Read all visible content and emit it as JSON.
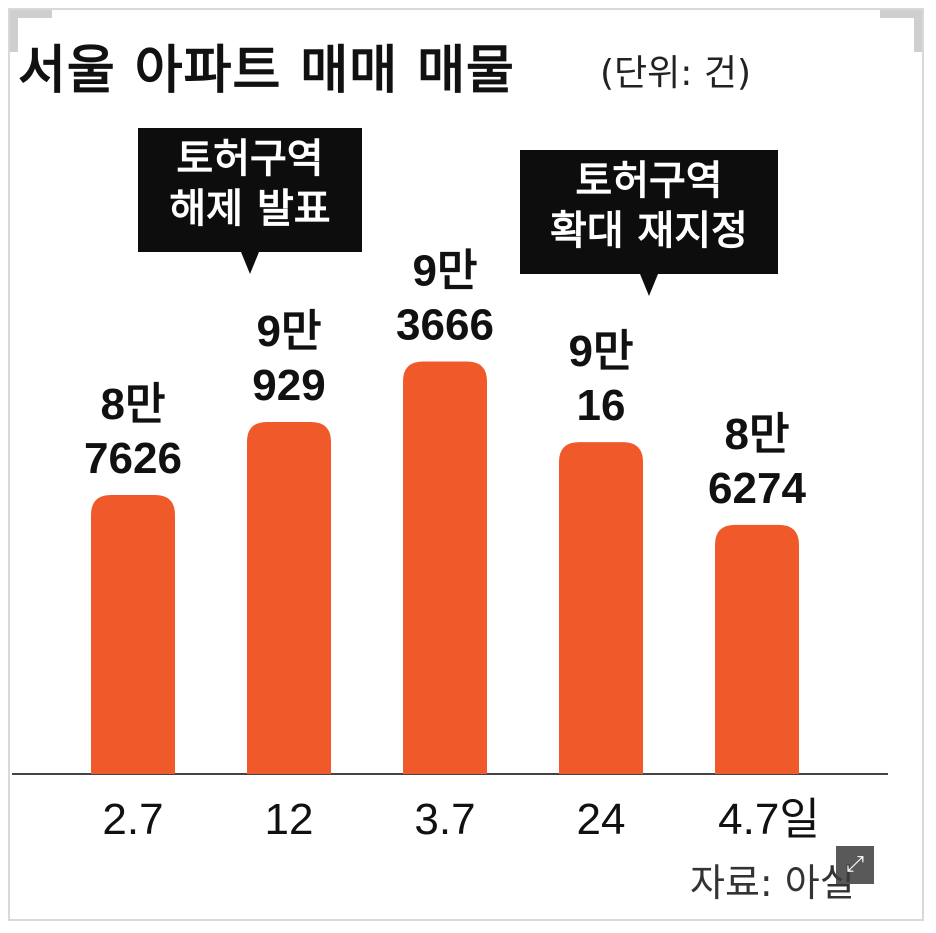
{
  "title": "서울 아파트 매매 매물",
  "unit_note": "(단위: 건)",
  "source": "자료: 아실",
  "colors": {
    "bar": "#f05a2a",
    "baseline": "#444444",
    "callout_bg": "#0d0d0d"
  },
  "callouts": [
    {
      "line1": "토허구역",
      "line2": "해제 발표"
    },
    {
      "line1": "토허구역",
      "line2": "확대 재지정"
    }
  ],
  "expand_icon": "expand-icon",
  "chart_data": {
    "type": "bar",
    "title": "서울 아파트 매매 매물",
    "unit": "(단위: 건)",
    "categories": [
      "2.7",
      "12",
      "3.7",
      "24",
      "4.7일"
    ],
    "values": [
      87626,
      90929,
      93666,
      90016,
      86274
    ],
    "value_labels": [
      [
        "8만",
        "7626"
      ],
      [
        "9만",
        "929"
      ],
      [
        "9만",
        "3666"
      ],
      [
        "9만",
        "16"
      ],
      [
        "8만",
        "6274"
      ]
    ],
    "ylim": [
      75000,
      95000
    ],
    "grid": false,
    "legend": "none"
  }
}
